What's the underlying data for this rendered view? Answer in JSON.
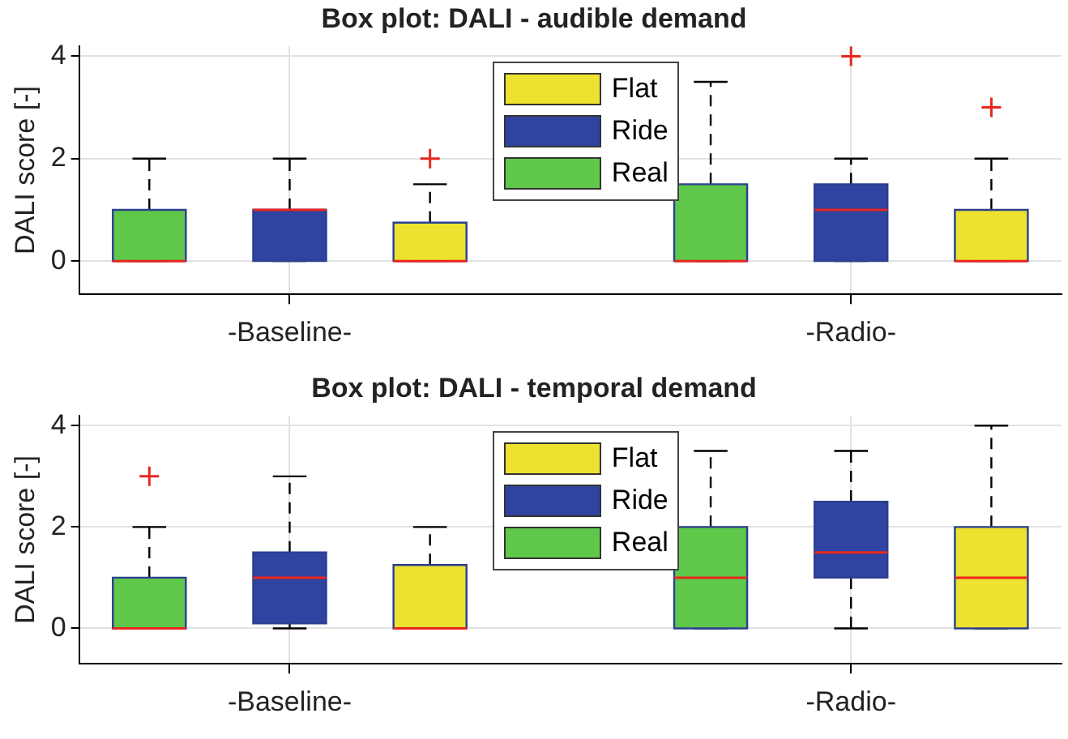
{
  "chart_data": [
    {
      "type": "box",
      "title": "Box plot: DALI - audible demand",
      "ylabel": "DALI score [-]",
      "categories": [
        null,
        "-Baseline-",
        null,
        null,
        null,
        "-Radio-",
        null
      ],
      "ylim": [
        -0.65,
        4.2
      ],
      "yticks": [
        0,
        2,
        4
      ],
      "grid": true,
      "legend": "top",
      "series": [
        {
          "name": "Flat",
          "color": "#ece22f",
          "boxes": [
            null,
            null,
            {
              "low": 0,
              "q1": 0,
              "median": 0,
              "q3": 0.75,
              "high": 1.5,
              "outliers": [
                2
              ]
            },
            null,
            null,
            null,
            {
              "low": 0,
              "q1": 0,
              "median": 0,
              "q3": 1,
              "high": 2,
              "outliers": [
                3
              ]
            }
          ]
        },
        {
          "name": "Ride",
          "color": "#2f43a0",
          "boxes": [
            null,
            {
              "low": 0,
              "q1": 0,
              "median": 1,
              "q3": 1,
              "high": 2
            },
            null,
            null,
            null,
            {
              "low": 0,
              "q1": 0,
              "median": 1,
              "q3": 1.5,
              "high": 2,
              "outliers": [
                4
              ]
            },
            null
          ]
        },
        {
          "name": "Real",
          "color": "#5fc84a",
          "boxes": [
            {
              "low": 0,
              "q1": 0,
              "median": 0,
              "q3": 1,
              "high": 2
            },
            null,
            null,
            null,
            {
              "low": 0,
              "q1": 0,
              "median": 0,
              "q3": 1.5,
              "high": 3.5
            },
            null,
            null
          ]
        }
      ]
    },
    {
      "type": "box",
      "title": "Box plot: DALI - temporal demand",
      "ylabel": "DALI score [-]",
      "categories": [
        null,
        "-Baseline-",
        null,
        null,
        null,
        "-Radio-",
        null
      ],
      "ylim": [
        -0.7,
        4.2
      ],
      "yticks": [
        0,
        2,
        4
      ],
      "grid": true,
      "legend": "top",
      "series": [
        {
          "name": "Flat",
          "color": "#ece22f",
          "boxes": [
            null,
            null,
            {
              "low": 0,
              "q1": 0,
              "median": 0,
              "q3": 1.25,
              "high": 2
            },
            null,
            null,
            null,
            {
              "low": 0,
              "q1": 0,
              "median": 1,
              "q3": 2,
              "high": 4
            }
          ]
        },
        {
          "name": "Ride",
          "color": "#2f43a0",
          "boxes": [
            null,
            {
              "low": 0,
              "q1": 0.1,
              "median": 1,
              "q3": 1.5,
              "high": 3
            },
            null,
            null,
            null,
            {
              "low": 0,
              "q1": 1,
              "median": 1.5,
              "q3": 2.5,
              "high": 3.5
            },
            null
          ]
        },
        {
          "name": "Real",
          "color": "#5fc84a",
          "boxes": [
            {
              "low": 0,
              "q1": 0,
              "median": 0,
              "q3": 1,
              "high": 2,
              "outliers": [
                3
              ]
            },
            null,
            null,
            null,
            {
              "low": 0,
              "q1": 0,
              "median": 1,
              "q3": 2,
              "high": 3.5
            },
            null,
            null
          ]
        }
      ]
    }
  ]
}
